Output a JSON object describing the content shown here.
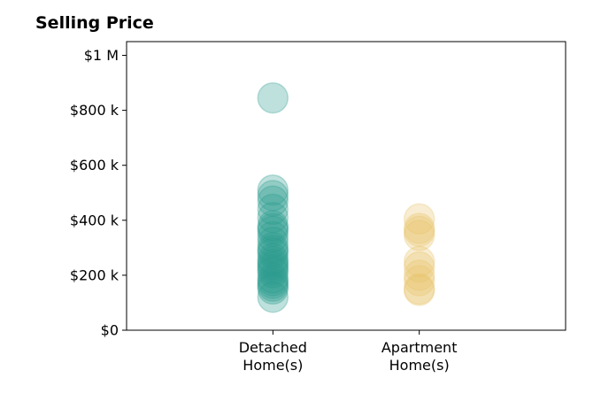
{
  "chart_data": {
    "type": "scatter",
    "title": "Selling Price",
    "xlabel": "",
    "ylabel": "",
    "categories": [
      "Detached\nHome(s)",
      "Apartment\nHome(s)"
    ],
    "yticks": [
      0,
      200000,
      400000,
      600000,
      800000,
      1000000
    ],
    "ytick_labels": [
      "$0",
      "$200 k",
      "$400 k",
      "$600 k",
      "$800 k",
      "$1 M"
    ],
    "ylim": [
      0,
      1050000
    ],
    "xlim": [
      -1,
      2
    ],
    "grid": false,
    "series": [
      {
        "category_index": 0,
        "color": "#2a9d8f",
        "values": [
          845000,
          510000,
          490000,
          470000,
          440000,
          410000,
          380000,
          370000,
          360000,
          340000,
          320000,
          300000,
          290000,
          280000,
          260000,
          250000,
          240000,
          230000,
          220000,
          210000,
          190000,
          180000,
          170000,
          160000,
          150000,
          120000
        ]
      },
      {
        "category_index": 1,
        "color": "#e9c46a",
        "values": [
          405000,
          370000,
          360000,
          345000,
          250000,
          230000,
          200000,
          180000,
          150000,
          145000
        ]
      }
    ]
  }
}
